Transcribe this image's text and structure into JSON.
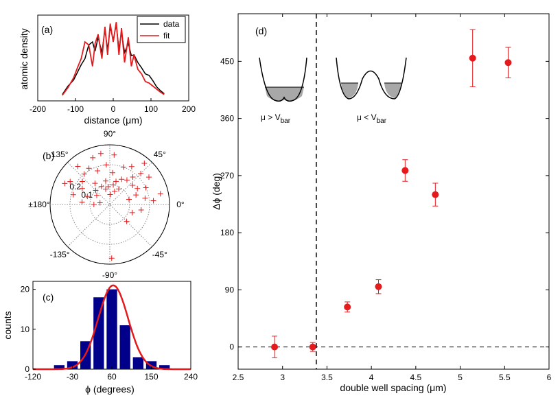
{
  "colors": {
    "data": "#000000",
    "fit": "#e41a1c",
    "marker": "#e41a1c",
    "bar": "#00008b",
    "axis": "#000000"
  },
  "chart_data": [
    {
      "panel": "(a)",
      "type": "line",
      "ylabel": "atomic density",
      "xlabel": "distance (μm)",
      "xlim": [
        -200,
        200
      ],
      "ylim": [
        0,
        1
      ],
      "xticks": [
        "-200",
        "-100",
        "0",
        "100",
        "200"
      ],
      "legend": {
        "placement": "top-right",
        "entries": [
          "data",
          "fit"
        ]
      },
      "series": [
        {
          "name": "data",
          "x": [
            -135,
            -120,
            -105,
            -95,
            -85,
            -75,
            -65,
            -55,
            -48,
            -40,
            -30,
            -22,
            -15,
            -8,
            0,
            8,
            15,
            22,
            30,
            40,
            48,
            55,
            65,
            75,
            85,
            95,
            105,
            115,
            125,
            135
          ],
          "y": [
            0.03,
            0.14,
            0.22,
            0.32,
            0.42,
            0.5,
            0.68,
            0.72,
            0.6,
            0.78,
            0.58,
            0.88,
            0.62,
            0.92,
            0.74,
            0.95,
            0.62,
            0.85,
            0.58,
            0.7,
            0.54,
            0.55,
            0.45,
            0.38,
            0.3,
            0.28,
            0.21,
            0.13,
            0.08,
            0.04
          ]
        },
        {
          "name": "fit",
          "x": [
            -135,
            -120,
            -105,
            -95,
            -85,
            -75,
            -65,
            -55,
            -48,
            -40,
            -30,
            -22,
            -15,
            -8,
            0,
            8,
            15,
            22,
            30,
            40,
            48,
            55,
            65,
            75,
            85,
            95,
            105,
            115,
            125,
            135
          ],
          "y": [
            0.02,
            0.12,
            0.25,
            0.38,
            0.5,
            0.72,
            0.68,
            0.4,
            0.7,
            0.82,
            0.5,
            0.92,
            0.55,
            0.96,
            0.72,
            0.98,
            0.55,
            0.9,
            0.45,
            0.78,
            0.4,
            0.55,
            0.36,
            0.3,
            0.2,
            0.18,
            0.14,
            0.1,
            0.06,
            0.03
          ]
        }
      ]
    },
    {
      "panel": "(b)",
      "type": "scatter",
      "polar": true,
      "angle_labels": [
        "90°",
        "45°",
        "0°",
        "-45°",
        "-90°",
        "-135°",
        "±180°",
        "135°"
      ],
      "radial_labels": [
        "0.2",
        "0.1"
      ],
      "rmax": 0.3,
      "points_polar_deg_r": [
        [
          60,
          0.22
        ],
        [
          70,
          0.2
        ],
        [
          85,
          0.16
        ],
        [
          95,
          0.2
        ],
        [
          110,
          0.18
        ],
        [
          120,
          0.21
        ],
        [
          130,
          0.2
        ],
        [
          140,
          0.18
        ],
        [
          150,
          0.16
        ],
        [
          160,
          0.12
        ],
        [
          170,
          0.05
        ],
        [
          35,
          0.24
        ],
        [
          45,
          0.22
        ],
        [
          50,
          0.18
        ],
        [
          55,
          0.15
        ],
        [
          65,
          0.14
        ],
        [
          75,
          0.12
        ],
        [
          80,
          0.1
        ],
        [
          100,
          0.12
        ],
        [
          105,
          0.08
        ],
        [
          115,
          0.1
        ],
        [
          125,
          0.13
        ],
        [
          135,
          0.1
        ],
        [
          145,
          0.08
        ],
        [
          40,
          0.15
        ],
        [
          30,
          0.16
        ],
        [
          25,
          0.2
        ],
        [
          20,
          0.14
        ],
        [
          15,
          0.1
        ],
        [
          10,
          0.18
        ],
        [
          5,
          0.22
        ],
        [
          -10,
          0.16
        ],
        [
          -20,
          0.12
        ],
        [
          -45,
          0.12
        ],
        [
          -88,
          0.27
        ],
        [
          60,
          0.09
        ],
        [
          70,
          0.07
        ],
        [
          88,
          0.05
        ],
        [
          95,
          0.09
        ],
        [
          110,
          0.25
        ],
        [
          150,
          0.23
        ],
        [
          155,
          0.25
        ],
        [
          165,
          0.19
        ],
        [
          175,
          0.14
        ],
        [
          12,
          0.26
        ],
        [
          50,
          0.27
        ],
        [
          85,
          0.25
        ],
        [
          100,
          0.26
        ],
        [
          130,
          0.25
        ],
        [
          180,
          0.08
        ]
      ]
    },
    {
      "panel": "(c)",
      "type": "bar",
      "ylabel": "counts",
      "xlabel": "ϕ (degrees)",
      "xlim": [
        -120,
        240
      ],
      "ylim": [
        0,
        22
      ],
      "xticks": [
        "-120",
        "-30",
        "60",
        "150",
        "240"
      ],
      "yticks": [
        "0",
        "10",
        "20"
      ],
      "x": [
        -60,
        -30,
        0,
        30,
        60,
        90,
        120,
        150,
        180
      ],
      "values": [
        1,
        2,
        7,
        18,
        20,
        11,
        3,
        2,
        1
      ],
      "fit": {
        "type": "gaussian",
        "mean": 63,
        "sd": 34,
        "peak": 21
      }
    },
    {
      "panel": "(d)",
      "type": "scatter",
      "xlabel": "double well spacing (μm)",
      "ylabel": "Δϕ (deg)",
      "xlim": [
        2.5,
        6
      ],
      "ylim": [
        -35,
        525
      ],
      "xticks": [
        "2.5",
        "3",
        "3.5",
        "4",
        "4.5",
        "5",
        "5.5",
        "6"
      ],
      "yticks": [
        "0",
        "90",
        "180",
        "270",
        "360",
        "450"
      ],
      "vline": 3.38,
      "hline": 0,
      "inset_left": "μ > V",
      "inset_left_sub": "bar",
      "inset_right": "μ < V",
      "inset_right_sub": "bar",
      "points": [
        {
          "x": 2.91,
          "y": 0,
          "err": 17
        },
        {
          "x": 3.34,
          "y": 0,
          "err": 7
        },
        {
          "x": 3.73,
          "y": 63,
          "err": 8
        },
        {
          "x": 4.08,
          "y": 95,
          "err": 11
        },
        {
          "x": 4.38,
          "y": 278,
          "err": 17
        },
        {
          "x": 4.72,
          "y": 240,
          "err": 18
        },
        {
          "x": 5.14,
          "y": 455,
          "err": 45
        },
        {
          "x": 5.54,
          "y": 448,
          "err": 24
        }
      ]
    }
  ]
}
